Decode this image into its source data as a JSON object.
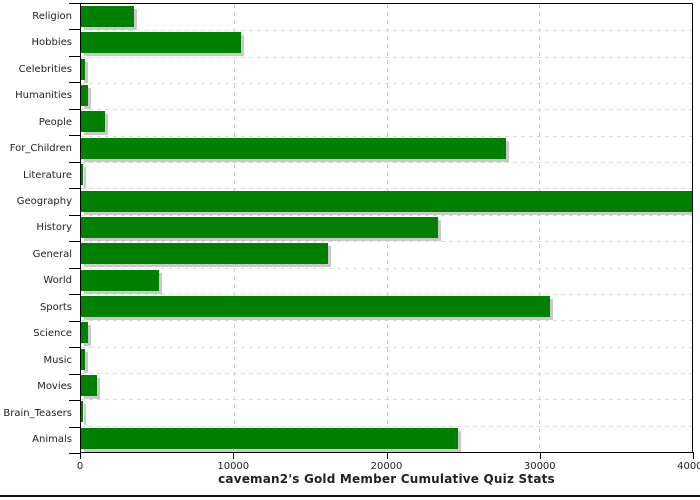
{
  "colors": {
    "bar": "#008000",
    "bar_shadow": "#c9c9c9",
    "axis": "#000000",
    "grid_horizontal": "#dadada",
    "grid_vertical": "#ccd4dc",
    "text": "#222222"
  },
  "chart_data": {
    "type": "bar",
    "orientation": "horizontal",
    "title": "caveman2's Gold Member Cumulative Quiz Stats",
    "xlabel": "",
    "ylabel": "",
    "categories": [
      "Religion",
      "Hobbies",
      "Celebrities",
      "Humanities",
      "People",
      "For_Children",
      "Literature",
      "Geography",
      "History",
      "General",
      "World",
      "Sports",
      "Science",
      "Music",
      "Movies",
      "Brain_Teasers",
      "Animals"
    ],
    "values": [
      3500,
      10500,
      280,
      475,
      1550,
      27800,
      130,
      40000,
      23400,
      16200,
      5100,
      30700,
      480,
      240,
      1030,
      150,
      24700
    ],
    "xlim": [
      0,
      40000
    ],
    "x_ticks": [
      0,
      10000,
      20000,
      30000,
      40000
    ],
    "x_tick_labels": [
      "0",
      "10000",
      "20000",
      "30000",
      "40000"
    ],
    "grid": true,
    "legend": false
  }
}
